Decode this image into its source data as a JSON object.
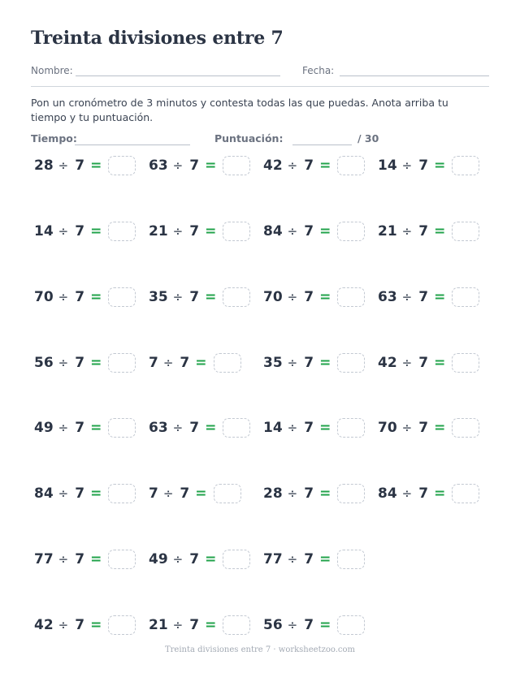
{
  "title": "Treinta divisiones entre 7",
  "name_label": "Nombre:",
  "date_label": "Fecha:",
  "instructions": "Pon un cronómetro de 3 minutos y contesta todas las que puedas. Anota arriba tu tiempo y tu puntuación.",
  "time_label": "Tiempo:",
  "score_label": "Puntuación:",
  "score_total": "/ 30",
  "operator": "÷",
  "equals": "=",
  "problems": [
    {
      "dividend": "28",
      "divisor": "7"
    },
    {
      "dividend": "63",
      "divisor": "7"
    },
    {
      "dividend": "42",
      "divisor": "7"
    },
    {
      "dividend": "14",
      "divisor": "7"
    },
    {
      "dividend": "14",
      "divisor": "7"
    },
    {
      "dividend": "21",
      "divisor": "7"
    },
    {
      "dividend": "84",
      "divisor": "7"
    },
    {
      "dividend": "21",
      "divisor": "7"
    },
    {
      "dividend": "70",
      "divisor": "7"
    },
    {
      "dividend": "35",
      "divisor": "7"
    },
    {
      "dividend": "70",
      "divisor": "7"
    },
    {
      "dividend": "63",
      "divisor": "7"
    },
    {
      "dividend": "56",
      "divisor": "7"
    },
    {
      "dividend": "7",
      "divisor": "7"
    },
    {
      "dividend": "35",
      "divisor": "7"
    },
    {
      "dividend": "42",
      "divisor": "7"
    },
    {
      "dividend": "49",
      "divisor": "7"
    },
    {
      "dividend": "63",
      "divisor": "7"
    },
    {
      "dividend": "14",
      "divisor": "7"
    },
    {
      "dividend": "70",
      "divisor": "7"
    },
    {
      "dividend": "84",
      "divisor": "7"
    },
    {
      "dividend": "7",
      "divisor": "7"
    },
    {
      "dividend": "28",
      "divisor": "7"
    },
    {
      "dividend": "84",
      "divisor": "7"
    },
    {
      "dividend": "77",
      "divisor": "7"
    },
    {
      "dividend": "49",
      "divisor": "7"
    },
    {
      "dividend": "77",
      "divisor": "7"
    },
    {
      "dividend": "42",
      "divisor": "7"
    },
    {
      "dividend": "21",
      "divisor": "7"
    },
    {
      "dividend": "56",
      "divisor": "7"
    }
  ],
  "footer": "Treinta divisiones entre 7 · worksheetzoo.com"
}
